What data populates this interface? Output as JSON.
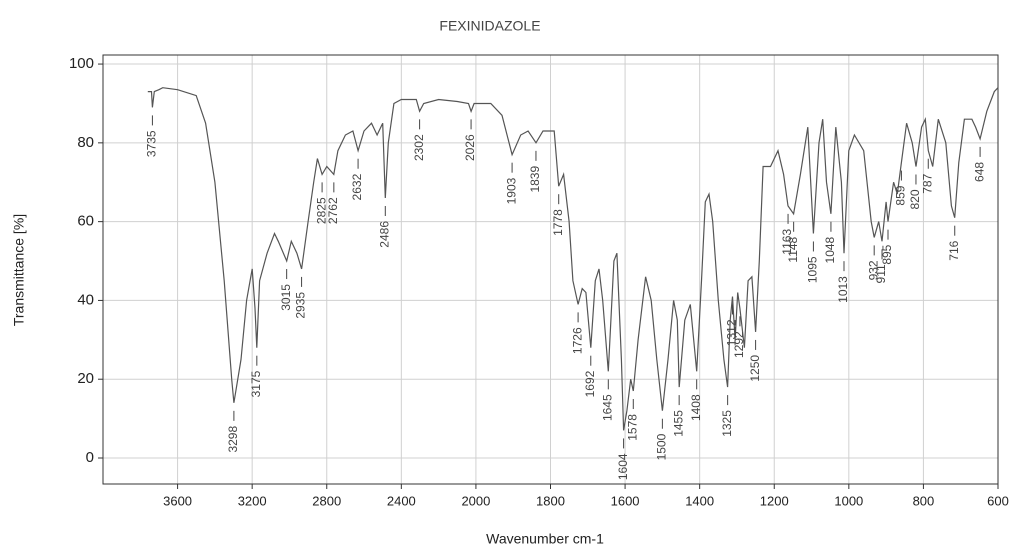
{
  "chart_data": {
    "type": "line",
    "title": "FEXINIDAZOLE",
    "x_label": "Wavenumber cm-1",
    "y_label": "Transmittance [%]",
    "x": [
      3760,
      3740,
      3735,
      3725,
      3700,
      3680,
      3600,
      3500,
      3450,
      3400,
      3350,
      3310,
      3298,
      3260,
      3230,
      3200,
      3185,
      3175,
      3160,
      3120,
      3080,
      3060,
      3015,
      2990,
      2960,
      2935,
      2900,
      2870,
      2850,
      2825,
      2800,
      2762,
      2740,
      2700,
      2660,
      2632,
      2600,
      2560,
      2530,
      2500,
      2486,
      2470,
      2440,
      2400,
      2320,
      2302,
      2280,
      2200,
      2100,
      2040,
      2026,
      2010,
      1960,
      1930,
      1903,
      1880,
      1860,
      1839,
      1820,
      1790,
      1778,
      1765,
      1750,
      1740,
      1726,
      1715,
      1705,
      1692,
      1680,
      1670,
      1660,
      1645,
      1630,
      1622,
      1610,
      1604,
      1595,
      1585,
      1578,
      1565,
      1545,
      1530,
      1515,
      1500,
      1485,
      1470,
      1460,
      1455,
      1440,
      1425,
      1408,
      1395,
      1385,
      1375,
      1365,
      1350,
      1335,
      1325,
      1318,
      1312,
      1305,
      1298,
      1292,
      1280,
      1270,
      1260,
      1250,
      1240,
      1230,
      1210,
      1190,
      1175,
      1163,
      1148,
      1130,
      1110,
      1095,
      1080,
      1070,
      1060,
      1048,
      1035,
      1020,
      1013,
      1000,
      985,
      960,
      940,
      932,
      920,
      911,
      900,
      895,
      880,
      870,
      859,
      845,
      830,
      820,
      805,
      795,
      787,
      775,
      760,
      740,
      725,
      716,
      705,
      690,
      670,
      660,
      648,
      630,
      610,
      600
    ],
    "values": [
      93,
      93,
      89,
      93,
      93.5,
      94,
      93.5,
      92,
      85,
      70,
      45,
      20,
      14,
      25,
      40,
      48,
      38,
      28,
      45,
      52,
      57,
      55,
      50,
      55,
      52,
      48,
      60,
      70,
      76,
      72,
      74,
      72,
      78,
      82,
      83,
      78,
      83,
      85,
      82,
      85,
      66,
      80,
      90,
      91,
      91,
      88,
      90,
      91,
      90.5,
      90,
      88,
      90,
      90,
      87,
      77,
      82,
      83,
      80,
      83,
      83,
      69,
      72,
      60,
      45,
      39,
      43,
      42,
      28,
      45,
      48,
      40,
      22,
      50,
      52,
      25,
      7,
      12,
      20,
      17,
      30,
      46,
      40,
      25,
      12,
      25,
      40,
      35,
      18,
      35,
      39,
      22,
      45,
      65,
      67,
      60,
      40,
      25,
      18,
      35,
      41,
      30,
      42,
      38,
      28,
      45,
      46,
      32,
      50,
      74,
      74,
      78,
      72,
      64,
      62,
      72,
      84,
      57,
      80,
      86,
      70,
      62,
      84,
      70,
      52,
      78,
      82,
      78,
      60,
      56,
      60,
      55,
      65,
      60,
      70,
      67,
      75,
      85,
      80,
      74,
      84,
      86,
      78,
      74,
      86,
      80,
      64,
      61,
      75,
      86,
      86,
      84,
      81,
      88,
      93,
      94
    ],
    "peaks": [
      3735,
      3298,
      3175,
      3015,
      2935,
      2825,
      2762,
      2632,
      2486,
      2302,
      2026,
      1903,
      1839,
      1778,
      1726,
      1692,
      1645,
      1604,
      1578,
      1500,
      1455,
      1408,
      1325,
      1312,
      1292,
      1250,
      1163,
      1148,
      1095,
      1048,
      1013,
      932,
      911,
      895,
      859,
      820,
      787,
      716,
      648
    ],
    "color": "#555555",
    "xlim": [
      4000,
      600
    ],
    "xticks": [
      3600,
      3200,
      2800,
      2400,
      2000,
      1800,
      1600,
      1400,
      1200,
      1000,
      800,
      600
    ],
    "ylim": [
      -6.6,
      102.3
    ],
    "yticks": [
      0,
      20,
      40,
      60,
      80,
      100
    ],
    "grid": true
  }
}
